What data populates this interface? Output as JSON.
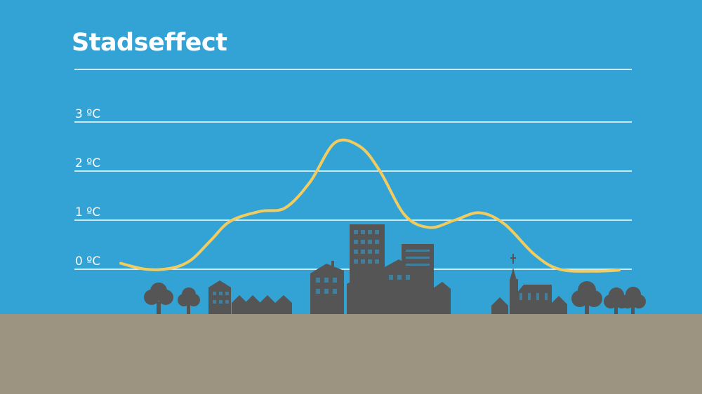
{
  "chart_data": {
    "type": "line",
    "title": "Stadseffect",
    "xlabel": "",
    "ylabel": "",
    "ylim": [
      0,
      4
    ],
    "grid": true,
    "y_ticks": [
      {
        "value": 0,
        "label": "0 ºC"
      },
      {
        "value": 1,
        "label": "1 ºC"
      },
      {
        "value": 2,
        "label": "2 ºC"
      },
      {
        "value": 3,
        "label": "3 ºC"
      }
    ],
    "series": [
      {
        "color": "#f2cc5f",
        "points": [
          [
            0.0,
            0.12
          ],
          [
            0.05,
            0.0
          ],
          [
            0.1,
            0.02
          ],
          [
            0.14,
            0.18
          ],
          [
            0.18,
            0.58
          ],
          [
            0.22,
            0.98
          ],
          [
            0.28,
            1.18
          ],
          [
            0.33,
            1.25
          ],
          [
            0.38,
            1.78
          ],
          [
            0.43,
            2.58
          ],
          [
            0.48,
            2.5
          ],
          [
            0.52,
            2.0
          ],
          [
            0.57,
            1.1
          ],
          [
            0.62,
            0.85
          ],
          [
            0.67,
            1.0
          ],
          [
            0.72,
            1.15
          ],
          [
            0.77,
            0.92
          ],
          [
            0.83,
            0.3
          ],
          [
            0.88,
            0.0
          ],
          [
            0.95,
            -0.04
          ],
          [
            1.0,
            -0.02
          ]
        ]
      }
    ]
  },
  "colors": {
    "sky": "#33a3d6",
    "ground": "#9c9381",
    "buildings": "#555555",
    "gridline": "#ffffff",
    "line": "#f2cc5f"
  }
}
